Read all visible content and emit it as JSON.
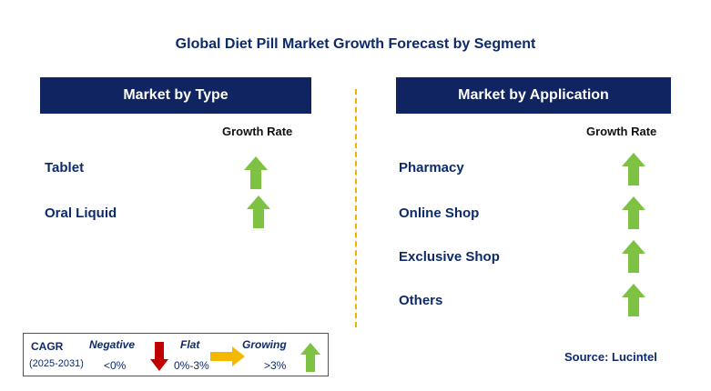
{
  "title": "Global Diet Pill Market Growth Forecast by Segment",
  "left_panel": {
    "header": "Market by Type",
    "column_label": "Growth Rate",
    "rows": [
      {
        "label": "Tablet",
        "trend": "growing"
      },
      {
        "label": "Oral Liquid",
        "trend": "growing"
      }
    ]
  },
  "right_panel": {
    "header": "Market by Application",
    "column_label": "Growth Rate",
    "rows": [
      {
        "label": "Pharmacy",
        "trend": "growing"
      },
      {
        "label": "Online Shop",
        "trend": "growing"
      },
      {
        "label": "Exclusive Shop",
        "trend": "growing"
      },
      {
        "label": "Others",
        "trend": "growing"
      }
    ]
  },
  "legend": {
    "cagr_label": "CAGR",
    "period": "(2025-2031)",
    "negative_label": "Negative",
    "negative_range": "<0%",
    "flat_label": "Flat",
    "flat_range": "0%-3%",
    "growing_label": "Growing",
    "growing_range": ">3%"
  },
  "source": "Source: Lucintel",
  "colors": {
    "header_bg": "#0f2461",
    "title_text": "#0d2a6b",
    "growing_arrow": "#7dc242",
    "negative_arrow": "#c00000",
    "flat_arrow": "#f5b800",
    "divider": "#f0b400"
  }
}
